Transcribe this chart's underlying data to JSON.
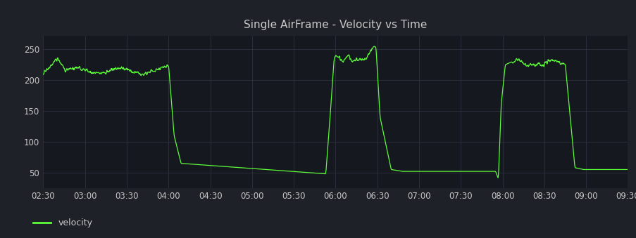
{
  "title": "Single AirFrame - Velocity vs Time",
  "background_color": "#1f2128",
  "plot_background_color": "#16181f",
  "line_color": "#5dfc3a",
  "grid_color": "#2e3040",
  "text_color": "#c8c8c8",
  "ylabel_ticks": [
    50,
    100,
    150,
    200,
    250
  ],
  "xlabel_ticks_minutes": [
    150,
    180,
    210,
    240,
    270,
    300,
    330,
    360,
    390,
    420,
    450,
    480,
    510,
    540,
    570
  ],
  "xlabel_labels": [
    "02:30",
    "03:00",
    "03:30",
    "04:00",
    "04:30",
    "05:00",
    "05:30",
    "06:00",
    "06:30",
    "07:00",
    "07:30",
    "08:00",
    "08:30",
    "09:00",
    "09:30"
  ],
  "ylim": [
    25,
    272
  ],
  "xlim": [
    150,
    570
  ],
  "legend_label": "velocity",
  "figsize": [
    9.04,
    3.39
  ],
  "dpi": 100
}
